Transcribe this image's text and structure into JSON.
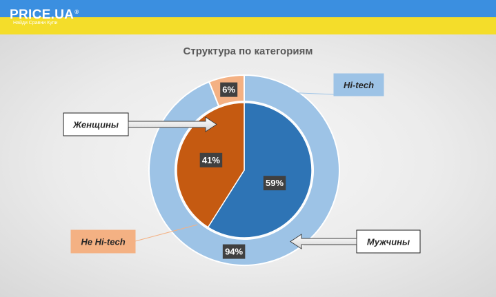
{
  "header": {
    "logo_text": "PRICE.UA",
    "logo_mark": "®",
    "slogan": "Найди Сравни Купи",
    "colors": {
      "top": "#3b8fe0",
      "bottom": "#f4dd2a"
    }
  },
  "chart_data": {
    "type": "pie",
    "title": "Структура по категориям",
    "rings": [
      {
        "ring": "inner",
        "slices": [
          {
            "label": "Мужчины",
            "value": 59,
            "display": "59%",
            "color": "#2e74b5"
          },
          {
            "label": "Женщины",
            "value": 41,
            "display": "41%",
            "color": "#c55a11"
          }
        ]
      },
      {
        "ring": "outer",
        "slices": [
          {
            "label": "Hi-tech",
            "value": 94,
            "display": "94%",
            "color": "#9dc3e6"
          },
          {
            "label": "Не Hi-tech",
            "value": 6,
            "display": "6%",
            "color": "#f4b183"
          }
        ]
      }
    ],
    "callouts": {
      "hitech": "Hi-tech",
      "women": "Женщины",
      "nonhitech": "Не Hi-tech",
      "men": "Мужчины"
    }
  }
}
